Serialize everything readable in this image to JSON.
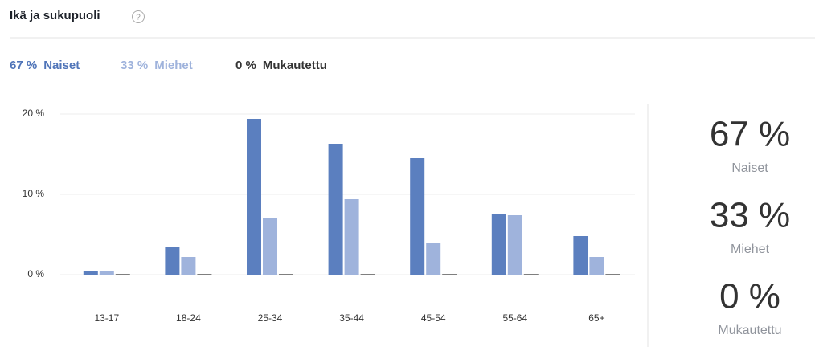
{
  "chart_data": {
    "type": "bar",
    "title": "Ikä ja sukupuoli",
    "categories": [
      "13-17",
      "18-24",
      "25-34",
      "35-44",
      "45-54",
      "55-64",
      "65+"
    ],
    "series": [
      {
        "name": "Naiset",
        "color": "#5b7fbf",
        "legend_color": "#4f74b8",
        "values": [
          0.4,
          3.5,
          19.4,
          16.3,
          14.5,
          7.5,
          4.8
        ],
        "total": 67,
        "total_label": "67 %"
      },
      {
        "name": "Miehet",
        "color": "#9fb3dc",
        "legend_color": "#9fb3dc",
        "values": [
          0.4,
          2.2,
          7.1,
          9.4,
          3.9,
          7.4,
          2.2
        ],
        "total": 33,
        "total_label": "33 %"
      },
      {
        "name": "Mukautettu",
        "color": "#555555",
        "legend_color": "#333333",
        "values": [
          0,
          0,
          0,
          0,
          0,
          0,
          0
        ],
        "total": 0,
        "total_label": "0 %"
      }
    ],
    "ylim": [
      0,
      20
    ],
    "yticks": [
      {
        "value": 0,
        "label": "0 %"
      },
      {
        "value": 10,
        "label": "10 %"
      },
      {
        "value": 20,
        "label": "20 %"
      }
    ],
    "grid": true
  }
}
